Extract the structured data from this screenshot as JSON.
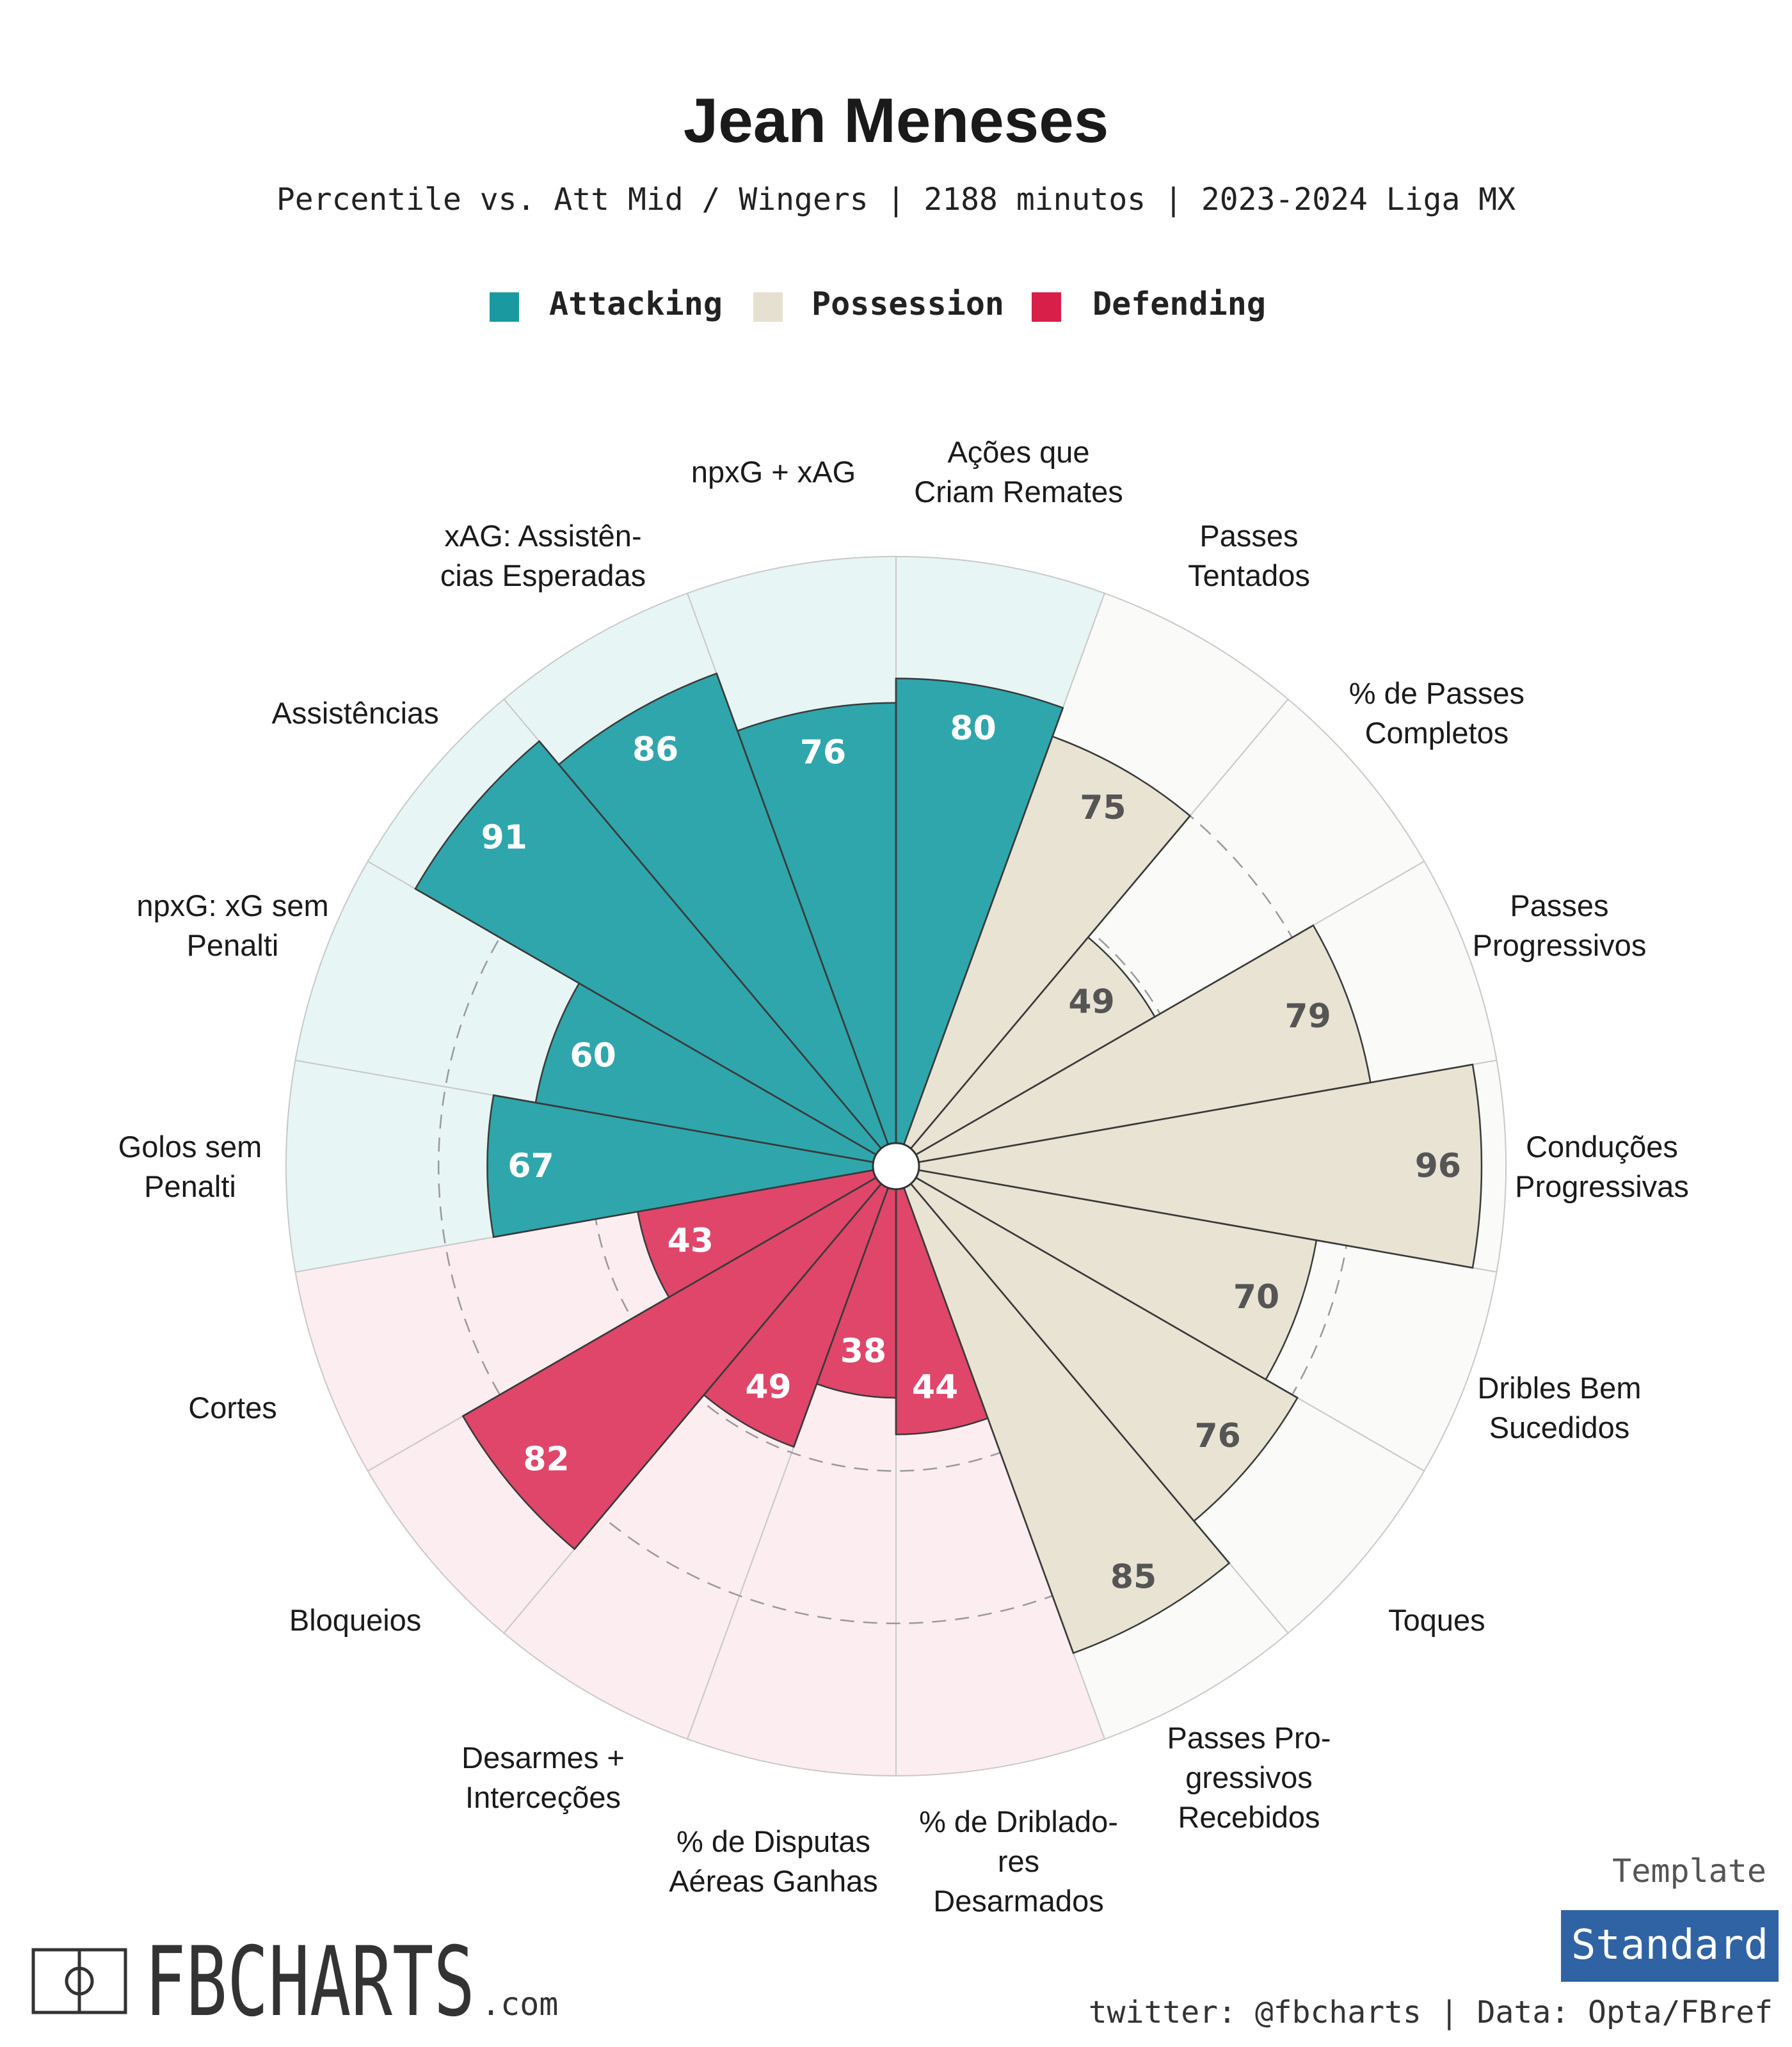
{
  "header": {
    "title": "Jean Meneses",
    "subtitle": "Percentile vs. Att Mid / Wingers | 2188 minutos | 2023-2024 Liga MX"
  },
  "legend": [
    {
      "label": "Attacking",
      "color": "#1a9aa0"
    },
    {
      "label": "Possession",
      "color": "#e6e0d0"
    },
    {
      "label": "Defending",
      "color": "#d81f4a"
    }
  ],
  "colors": {
    "Attacking": {
      "fill": "#2ea6ac",
      "bg": "#e8f5f5",
      "text": "#ffffff"
    },
    "Possession": {
      "fill": "#e8e3d3",
      "bg": "#fafaf8",
      "text": "#555555"
    },
    "Defending": {
      "fill": "#e0466a",
      "bg": "#fcedf0",
      "text": "#ffffff"
    }
  },
  "chart_data": {
    "type": "polar-bar",
    "scale": [
      0,
      100
    ],
    "gridlines": [
      25,
      50,
      75
    ],
    "metrics": [
      {
        "label": "Ações que\nCriam Remates",
        "value": 80,
        "group": "Attacking"
      },
      {
        "label": "Passes\nTentados",
        "value": 75,
        "group": "Possession"
      },
      {
        "label": "% de Passes\nCompletos",
        "value": 49,
        "group": "Possession"
      },
      {
        "label": "Passes\nProgressivos",
        "value": 79,
        "group": "Possession"
      },
      {
        "label": "Conduções\nProgressivas",
        "value": 96,
        "group": "Possession"
      },
      {
        "label": "Dribles Bem\nSucedidos",
        "value": 70,
        "group": "Possession"
      },
      {
        "label": "Toques",
        "value": 76,
        "group": "Possession"
      },
      {
        "label": "Passes Pro-\ngressivos\nRecebidos",
        "value": 85,
        "group": "Possession"
      },
      {
        "label": "% de Driblado-\nres\nDesarmados",
        "value": 44,
        "group": "Defending"
      },
      {
        "label": "% de Disputas\nAéreas Ganhas",
        "value": 38,
        "group": "Defending"
      },
      {
        "label": "Desarmes +\nInterceções",
        "value": 49,
        "group": "Defending"
      },
      {
        "label": "Bloqueios",
        "value": 82,
        "group": "Defending"
      },
      {
        "label": "Cortes",
        "value": 43,
        "group": "Defending"
      },
      {
        "label": "Golos sem\nPenalti",
        "value": 67,
        "group": "Attacking"
      },
      {
        "label": "npxG: xG sem\nPenalti",
        "value": 60,
        "group": "Attacking"
      },
      {
        "label": "Assistências",
        "value": 91,
        "group": "Attacking"
      },
      {
        "label": "xAG: Assistên-\ncias Esperadas",
        "value": 86,
        "group": "Attacking"
      },
      {
        "label": "npxG + xAG",
        "value": 76,
        "group": "Attacking"
      }
    ]
  },
  "footer": {
    "brand": "FBCHARTS",
    "brand_suffix": ".com",
    "template_label": "Template",
    "template_value": "Standard",
    "credits": "twitter: @fbcharts | Data: Opta/FBref"
  }
}
